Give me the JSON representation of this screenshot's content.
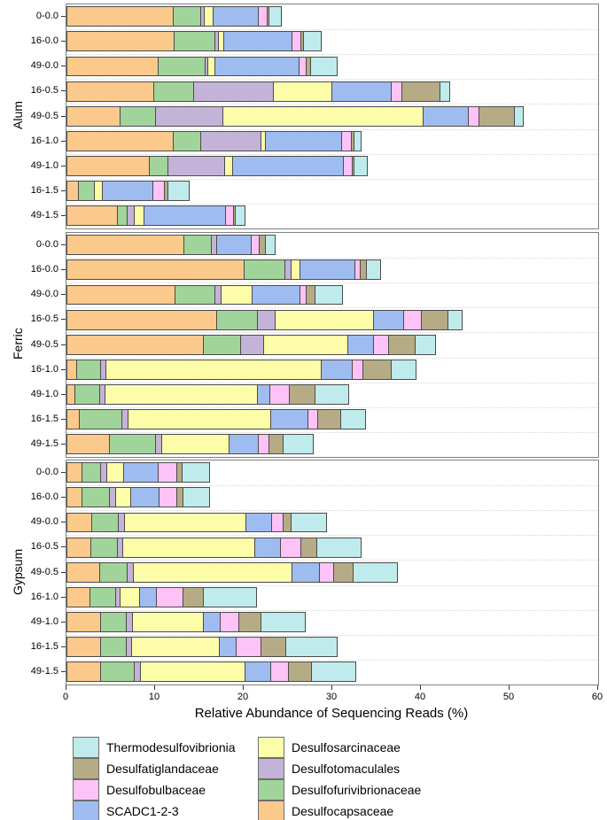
{
  "chart_data": {
    "type": "bar",
    "orientation": "horizontal",
    "stacked": true,
    "title": "",
    "xlabel": "Relative Abundance of Sequencing Reads (%)",
    "xlim": [
      0,
      60
    ],
    "xticks": [
      0,
      10,
      20,
      30,
      40,
      50,
      60
    ],
    "grid": "dotted horizontal minor gridlines between category rows",
    "legend_position": "bottom, two columns",
    "categories": [
      "0-0.0",
      "16-0.0",
      "49-0.0",
      "16-0.5",
      "49-0.5",
      "16-1.0",
      "49-1.0",
      "16-1.5",
      "49-1.5"
    ],
    "stack_order": [
      "Desulfocapsaceae",
      "Desulfofurivibrionaceae",
      "Desulfotomaculales",
      "Desulfosarcinaceae",
      "SCADC1-2-3",
      "Desulfobulbaceae",
      "Desulfatiglandaceae",
      "Thermodesulfovibrionia"
    ],
    "colors": {
      "Desulfocapsaceae": "#FBC98B",
      "Desulfofurivibrionaceae": "#A1D49A",
      "Desulfotomaculales": "#C4B3D9",
      "Desulfosarcinaceae": "#FDFCA9",
      "SCADC1-2-3": "#9FBCF0",
      "Desulfobulbaceae": "#FDC2F6",
      "Desulfatiglandaceae": "#B5AC85",
      "Thermodesulfovibrionia": "#BFEBEC"
    },
    "panels": [
      {
        "label": "Alum",
        "bars": [
          [
            12.1,
            3.2,
            0.5,
            1.1,
            5.2,
            1.1,
            0.3,
            1.5
          ],
          [
            12.2,
            4.7,
            0.5,
            0.7,
            7.8,
            1.1,
            0.4,
            2.1
          ],
          [
            10.4,
            5.4,
            0.4,
            0.9,
            9.6,
            0.9,
            0.6,
            3.1
          ],
          [
            9.9,
            4.6,
            9.1,
            6.7,
            6.8,
            1.3,
            4.4,
            1.2
          ],
          [
            6.1,
            4.1,
            7.7,
            22.7,
            5.2,
            1.3,
            4.1,
            1.1
          ],
          [
            12.1,
            3.2,
            6.9,
            0.6,
            8.7,
            1.2,
            0.4,
            0.9
          ],
          [
            9.4,
            2.2,
            6.5,
            1.0,
            12.6,
            1.1,
            0.3,
            1.6
          ],
          [
            1.4,
            1.9,
            0.0,
            1.0,
            5.8,
            1.4,
            0.5,
            2.5
          ],
          [
            5.8,
            1.2,
            0.9,
            1.2,
            9.3,
            1.0,
            0.3,
            1.2
          ]
        ]
      },
      {
        "label": "Ferric",
        "bars": [
          [
            13.3,
            3.2,
            0.7,
            0.0,
            4.0,
            1.0,
            0.8,
            1.2
          ],
          [
            20.1,
            4.7,
            0.8,
            1.1,
            6.3,
            0.7,
            0.8,
            1.7
          ],
          [
            12.3,
            4.6,
            0.8,
            3.6,
            5.5,
            0.8,
            1.1,
            3.2
          ],
          [
            17.0,
            4.7,
            2.1,
            11.2,
            3.5,
            2.1,
            3.1,
            1.7
          ],
          [
            15.5,
            4.3,
            2.7,
            9.6,
            3.0,
            1.8,
            3.1,
            2.4
          ],
          [
            1.2,
            2.8,
            0.7,
            24.4,
            3.6,
            1.3,
            3.3,
            2.9
          ],
          [
            1.0,
            2.9,
            0.7,
            17.3,
            1.5,
            2.3,
            3.0,
            3.9
          ],
          [
            1.5,
            4.9,
            0.8,
            16.2,
            4.3,
            1.2,
            2.7,
            2.9
          ],
          [
            4.9,
            5.3,
            0.8,
            7.7,
            3.4,
            1.3,
            1.7,
            3.5
          ]
        ]
      },
      {
        "label": "Gypsum",
        "bars": [
          [
            1.8,
            2.2,
            0.8,
            2.0,
            4.0,
            2.2,
            0.7,
            3.2
          ],
          [
            1.8,
            3.2,
            0.8,
            1.8,
            3.3,
            2.1,
            0.8,
            3.1
          ],
          [
            2.9,
            3.1,
            0.8,
            13.8,
            3.0,
            1.4,
            1.0,
            4.1
          ],
          [
            2.8,
            3.1,
            0.7,
            15.0,
            3.0,
            2.4,
            1.9,
            5.1
          ],
          [
            3.8,
            3.2,
            0.8,
            18.0,
            3.2,
            1.7,
            2.3,
            5.1
          ],
          [
            2.7,
            3.0,
            0.6,
            2.3,
            2.0,
            3.1,
            2.4,
            6.1
          ],
          [
            3.9,
            3.0,
            0.8,
            8.1,
            2.0,
            2.2,
            2.6,
            5.1
          ],
          [
            3.9,
            3.0,
            0.7,
            10.0,
            2.0,
            2.9,
            2.9,
            5.9
          ],
          [
            3.9,
            3.9,
            0.8,
            11.9,
            3.0,
            2.1,
            2.7,
            5.1
          ]
        ]
      }
    ],
    "legend": {
      "left_column": [
        "Thermodesulfovibrionia",
        "Desulfatiglandaceae",
        "Desulfobulbaceae",
        "SCADC1-2-3"
      ],
      "right_column": [
        "Desulfosarcinaceae",
        "Desulfotomaculales",
        "Desulfofurivibrionaceae",
        "Desulfocapsaceae"
      ]
    }
  }
}
